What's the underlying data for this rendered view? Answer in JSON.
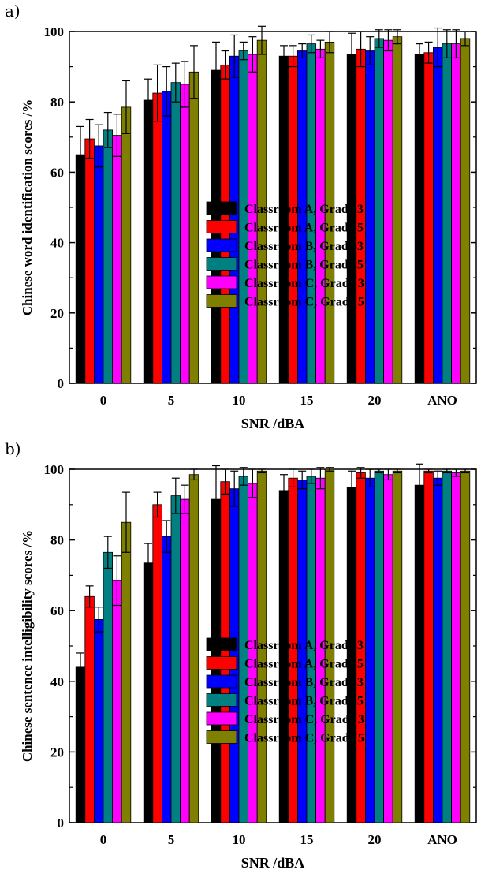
{
  "chart_data": [
    {
      "panel_label": "a)",
      "type": "bar",
      "ylabel": "Chinese word identification scores  /%",
      "xlabel": "SNR  /dBA",
      "ylim": [
        0,
        100
      ],
      "yticks": [
        "0",
        "20",
        "40",
        "60",
        "80",
        "100"
      ],
      "categories": [
        "0",
        "5",
        "10",
        "15",
        "20",
        "ANO"
      ],
      "legend_position": "center-right",
      "series": [
        {
          "name": "Classroom A, Grade 3",
          "color": "#000000",
          "values": [
            65,
            80.5,
            89,
            93,
            93.5,
            93.5
          ],
          "errors": [
            8,
            6,
            8,
            3,
            6,
            3
          ]
        },
        {
          "name": "Classroom A, Grade 5",
          "color": "#ff0000",
          "values": [
            69.5,
            82.5,
            90.5,
            93,
            95,
            94
          ],
          "errors": [
            5.5,
            8,
            4,
            3,
            5,
            3
          ]
        },
        {
          "name": "Classroom B, Grade 3",
          "color": "#0000ff",
          "values": [
            67.5,
            83,
            93,
            94.5,
            94.5,
            95.5
          ],
          "errors": [
            6,
            7,
            6,
            2,
            4,
            5.5
          ]
        },
        {
          "name": "Classroom B, Grade 5",
          "color": "#008080",
          "values": [
            72,
            85.5,
            94.5,
            96.5,
            98,
            96.5
          ],
          "errors": [
            5,
            5.5,
            2.5,
            2.5,
            2.5,
            4
          ]
        },
        {
          "name": "Classroom C, Grade 3",
          "color": "#ff00ff",
          "values": [
            70.5,
            85,
            93.5,
            95,
            97.5,
            96.5
          ],
          "errors": [
            6,
            6.5,
            5,
            2.5,
            3,
            4
          ]
        },
        {
          "name": "Classroom C, Grade 5",
          "color": "#808000",
          "values": [
            78.5,
            88.5,
            97.5,
            97,
            98.5,
            98
          ],
          "errors": [
            7.5,
            7.5,
            4,
            3,
            2,
            2
          ]
        }
      ]
    },
    {
      "panel_label": "b)",
      "type": "bar",
      "ylabel": "Chinese sentence intelligibility scores  /%",
      "xlabel": "SNR  /dBA",
      "ylim": [
        0,
        100
      ],
      "yticks": [
        "0",
        "20",
        "40",
        "60",
        "80",
        "100"
      ],
      "categories": [
        "0",
        "5",
        "10",
        "15",
        "20",
        "ANO"
      ],
      "legend_position": "bottom-right",
      "series": [
        {
          "name": "Classroom A, Grade 3",
          "color": "#000000",
          "values": [
            44,
            73.5,
            91.5,
            94,
            95,
            95.5
          ],
          "errors": [
            4,
            5.5,
            9.5,
            4.5,
            4.5,
            6
          ]
        },
        {
          "name": "Classroom A, Grade 5",
          "color": "#ff0000",
          "values": [
            64,
            90,
            96.5,
            97.5,
            99,
            99.5
          ],
          "errors": [
            3,
            3.5,
            3.5,
            2.5,
            1.5,
            0.5
          ]
        },
        {
          "name": "Classroom B, Grade 3",
          "color": "#0000ff",
          "values": [
            57.5,
            81,
            94.5,
            97,
            97.5,
            97.5
          ],
          "errors": [
            3.5,
            4.5,
            5,
            2.5,
            2.5,
            2
          ]
        },
        {
          "name": "Classroom B, Grade 5",
          "color": "#008080",
          "values": [
            76.5,
            92.5,
            98,
            98,
            99.5,
            99.5
          ],
          "errors": [
            4.5,
            5,
            2.5,
            2,
            0.5,
            0.5
          ]
        },
        {
          "name": "Classroom C, Grade 3",
          "color": "#ff00ff",
          "values": [
            68.5,
            91.5,
            96,
            97.5,
            98.5,
            99
          ],
          "errors": [
            7,
            4,
            4,
            3,
            1.5,
            1
          ]
        },
        {
          "name": "Classroom C, Grade 5",
          "color": "#808000",
          "values": [
            85,
            98.5,
            99.5,
            100,
            99.5,
            99.5
          ],
          "errors": [
            8.5,
            1.5,
            0.5,
            0.5,
            0.5,
            0.5
          ]
        }
      ]
    }
  ]
}
